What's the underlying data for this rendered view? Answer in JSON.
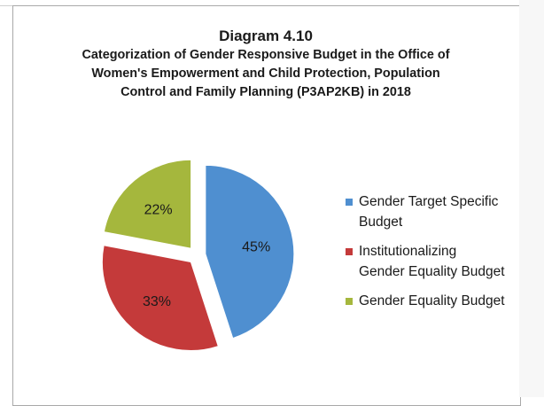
{
  "figure": {
    "number": "Diagram 4.10",
    "title_lines": [
      "Categorization of Gender Responsive Budget in the Office of",
      "Women's Empowerment and Child Protection, Population",
      "Control and Family Planning (P3AP2KB) in 2018"
    ]
  },
  "chart_data": {
    "type": "pie",
    "categories": [
      "Gender Target Specific Budget",
      "Institutionalizing Gender Equality Budget",
      "Gender Equality Budget"
    ],
    "values": [
      45,
      33,
      22
    ],
    "value_labels": [
      "45%",
      "33%",
      "22%"
    ],
    "colors": [
      "#4f8fd0",
      "#c43a3a",
      "#a5b73d"
    ],
    "legend_placement": "right",
    "legend": [
      {
        "lines": [
          "Gender Target Specific",
          "Budget"
        ],
        "color": "#4f8fd0"
      },
      {
        "lines": [
          "Institutionalizing",
          "Gender Equality Budget"
        ],
        "color": "#c43a3a"
      },
      {
        "lines": [
          "Gender Equality Budget"
        ],
        "color": "#a5b73d"
      }
    ]
  }
}
